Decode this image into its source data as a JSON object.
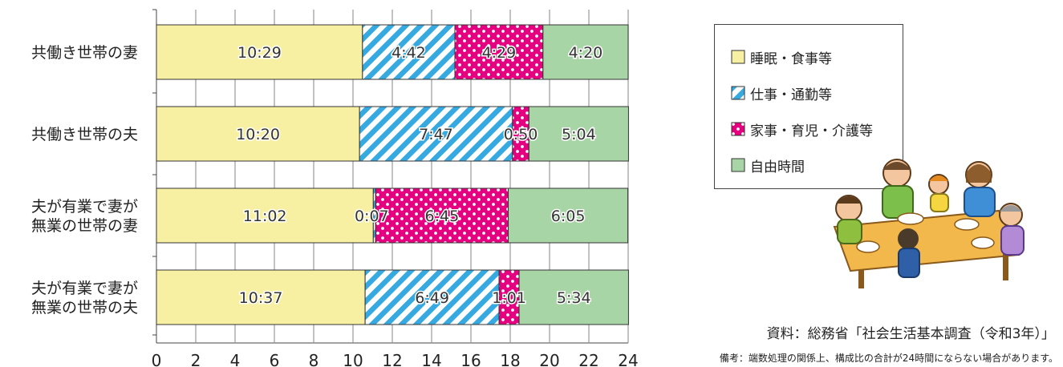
{
  "chart_data": {
    "type": "bar",
    "orientation": "horizontal",
    "stacked": true,
    "categories": [
      [
        "共働き世帯の妻"
      ],
      [
        "共働き世帯の夫"
      ],
      [
        "夫が有業で妻が",
        "無業の世帯の妻"
      ],
      [
        "夫が有業で妻が",
        "無業の世帯の夫"
      ]
    ],
    "series": [
      {
        "name": "睡眠・食事等",
        "color": "#f7f0a3",
        "pattern": "solid",
        "values": [
          10.4833,
          10.3333,
          11.0333,
          10.6167
        ],
        "labels": [
          "10:29",
          "10:20",
          "11:02",
          "10:37"
        ]
      },
      {
        "name": "仕事・通勤等",
        "color": "#36a9e1",
        "pattern": "diagonal-stripes",
        "values": [
          4.7,
          7.7833,
          0.1167,
          6.8167
        ],
        "labels": [
          "4:42",
          "7:47",
          "0:07",
          "6:49"
        ]
      },
      {
        "name": "家事・育児・介護等",
        "color": "#e4007f",
        "pattern": "dots",
        "values": [
          4.4833,
          0.8333,
          6.75,
          1.0167
        ],
        "labels": [
          "4:29",
          "0:50",
          "6:45",
          "1:01"
        ]
      },
      {
        "name": "自由時間",
        "color": "#a8d5a6",
        "pattern": "solid",
        "values": [
          4.3333,
          5.0667,
          6.0833,
          5.5667
        ],
        "labels": [
          "4:20",
          "5:04",
          "6:05",
          "5:34"
        ]
      }
    ],
    "xlim": [
      0,
      24
    ],
    "xticks": [
      "0",
      "2",
      "4",
      "6",
      "8",
      "10",
      "12",
      "14",
      "16",
      "18",
      "20",
      "22",
      "24"
    ],
    "grid": true,
    "legend_position": "right"
  },
  "source": "資料：総務省「社会生活基本調査（令和3年）」",
  "note": "備考：端数処理の関係上、構成比の合計が24時間にならない場合があります。"
}
